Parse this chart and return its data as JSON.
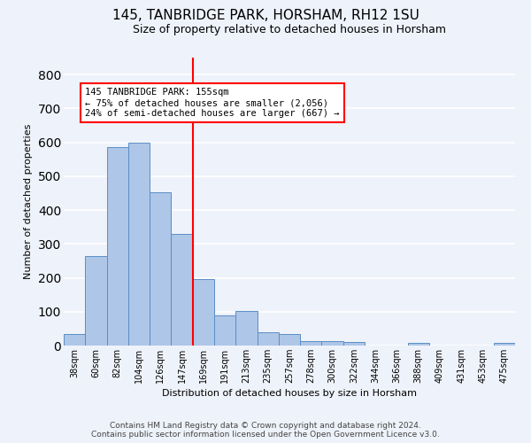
{
  "title1": "145, TANBRIDGE PARK, HORSHAM, RH12 1SU",
  "title2": "Size of property relative to detached houses in Horsham",
  "xlabel": "Distribution of detached houses by size in Horsham",
  "ylabel": "Number of detached properties",
  "categories": [
    "38sqm",
    "60sqm",
    "82sqm",
    "104sqm",
    "126sqm",
    "147sqm",
    "169sqm",
    "191sqm",
    "213sqm",
    "235sqm",
    "257sqm",
    "278sqm",
    "300sqm",
    "322sqm",
    "344sqm",
    "366sqm",
    "388sqm",
    "409sqm",
    "431sqm",
    "453sqm",
    "475sqm"
  ],
  "values": [
    35,
    265,
    585,
    600,
    453,
    330,
    197,
    90,
    103,
    38,
    33,
    14,
    14,
    10,
    0,
    0,
    8,
    0,
    0,
    0,
    8
  ],
  "bar_color": "#aec6e8",
  "bar_edge_color": "#5b8ec4",
  "annotation_text": "145 TANBRIDGE PARK: 155sqm\n← 75% of detached houses are smaller (2,056)\n24% of semi-detached houses are larger (667) →",
  "annotation_box_color": "white",
  "annotation_box_edge_color": "red",
  "vline_color": "red",
  "vline_x_index": 5,
  "ylim": [
    0,
    850
  ],
  "yticks": [
    0,
    100,
    200,
    300,
    400,
    500,
    600,
    700,
    800
  ],
  "footer1": "Contains HM Land Registry data © Crown copyright and database right 2024.",
  "footer2": "Contains public sector information licensed under the Open Government Licence v3.0.",
  "bg_color": "#eef2fa",
  "grid_color": "white",
  "title1_fontsize": 11,
  "title2_fontsize": 9,
  "xlabel_fontsize": 8,
  "ylabel_fontsize": 8,
  "tick_fontsize": 7,
  "footer_fontsize": 6.5
}
